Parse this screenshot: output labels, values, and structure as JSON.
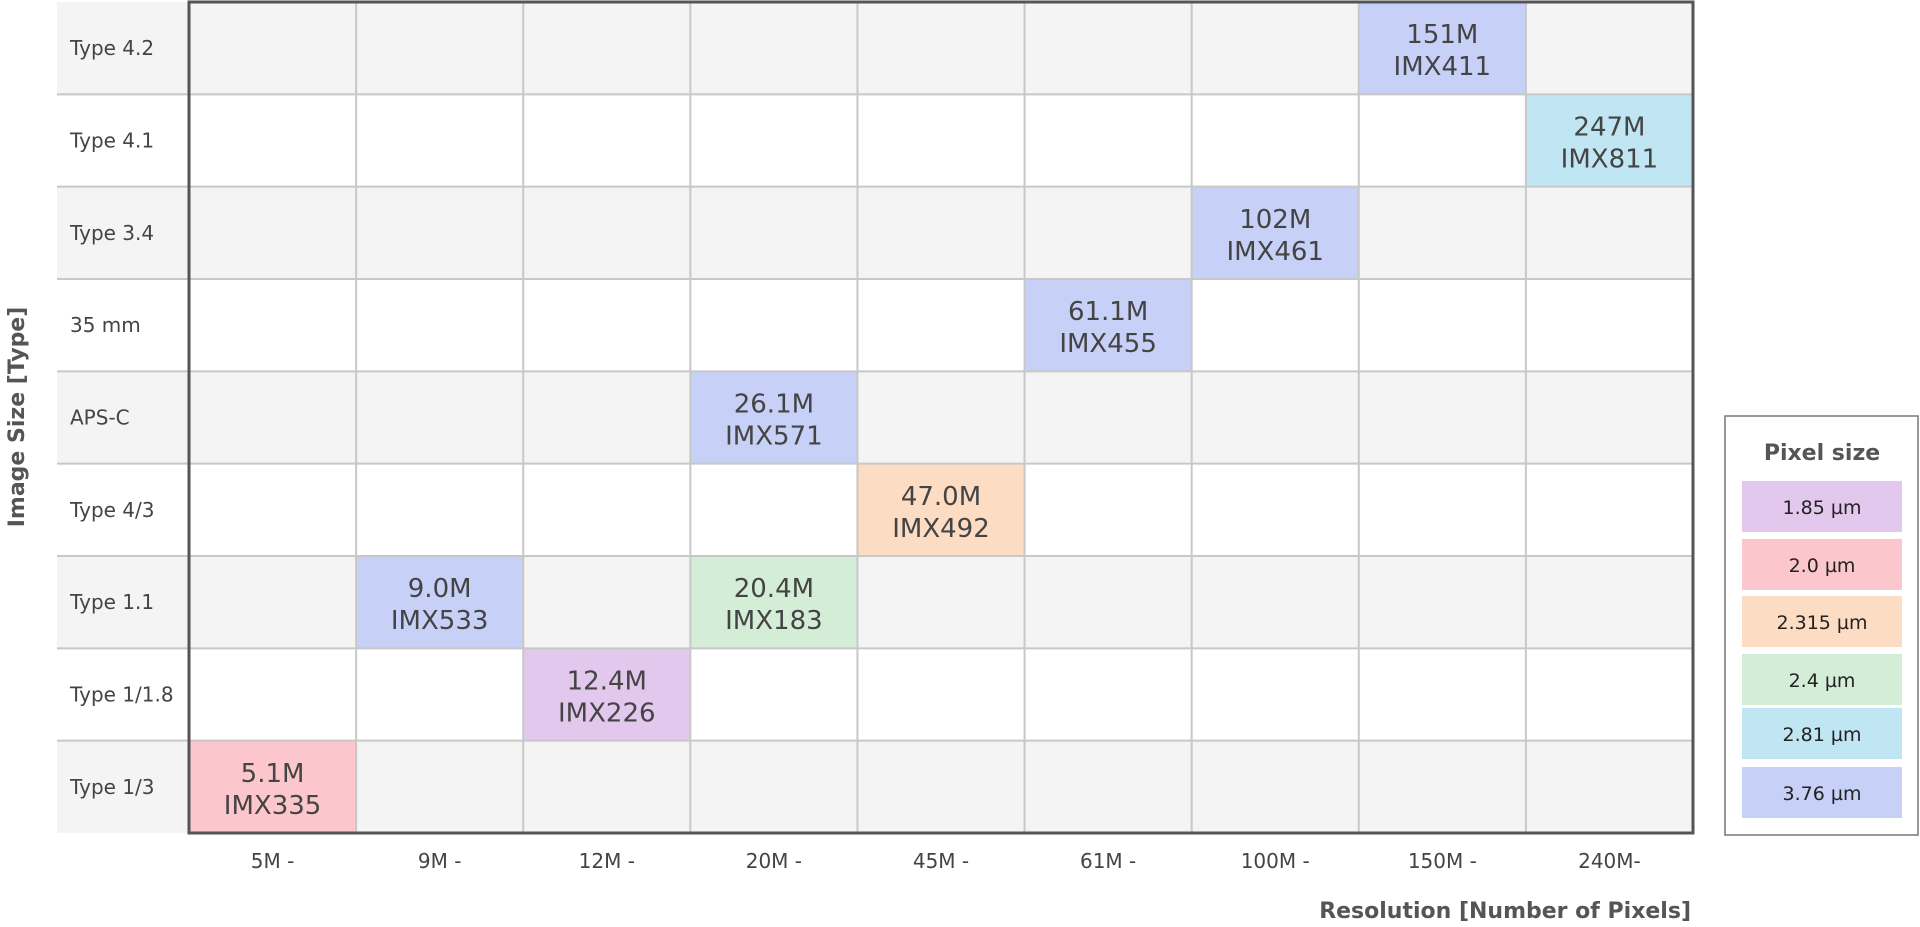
{
  "chart_data": {
    "type": "table",
    "xlabel": "Resolution [Number of Pixels]",
    "ylabel": "Image Size [Type]",
    "x_categories": [
      "5M -",
      "9M -",
      "12M -",
      "20M -",
      "45M -",
      "61M -",
      "100M -",
      "150M -",
      "240M-"
    ],
    "y_categories": [
      "Type 4.2",
      "Type 4.1",
      "Type 3.4",
      "35 mm",
      "APS-C",
      "Type 4/3",
      "Type 1.1",
      "Type 1/1.8",
      "Type 1/3"
    ],
    "legend_title": "Pixel size",
    "legend_position": "right",
    "legend": [
      {
        "label": "1.85 µm",
        "color": "#e2c8ec"
      },
      {
        "label": "2.0 µm",
        "color": "#fbc6cc"
      },
      {
        "label": "2.315 µm",
        "color": "#fddcc4"
      },
      {
        "label": "2.4 µm",
        "color": "#d3edd6"
      },
      {
        "label": "2.81 µm",
        "color": "#c0e6f3"
      },
      {
        "label": "3.76 µm",
        "color": "#c7d0f7"
      }
    ],
    "points": [
      {
        "x": "150M -",
        "y": "Type 4.2",
        "resolution": "151M",
        "model": "IMX411",
        "pixel_size": "3.76 µm"
      },
      {
        "x": "240M-",
        "y": "Type 4.1",
        "resolution": "247M",
        "model": "IMX811",
        "pixel_size": "2.81 µm"
      },
      {
        "x": "100M -",
        "y": "Type 3.4",
        "resolution": "102M",
        "model": "IMX461",
        "pixel_size": "3.76 µm"
      },
      {
        "x": "61M -",
        "y": "35 mm",
        "resolution": "61.1M",
        "model": "IMX455",
        "pixel_size": "3.76 µm"
      },
      {
        "x": "20M -",
        "y": "APS-C",
        "resolution": "26.1M",
        "model": "IMX571",
        "pixel_size": "3.76 µm"
      },
      {
        "x": "45M -",
        "y": "Type 4/3",
        "resolution": "47.0M",
        "model": "IMX492",
        "pixel_size": "2.315 µm"
      },
      {
        "x": "9M -",
        "y": "Type 1.1",
        "resolution": "9.0M",
        "model": "IMX533",
        "pixel_size": "3.76 µm"
      },
      {
        "x": "20M -",
        "y": "Type 1.1",
        "resolution": "20.4M",
        "model": "IMX183",
        "pixel_size": "2.4 µm"
      },
      {
        "x": "12M -",
        "y": "Type 1/1.8",
        "resolution": "12.4M",
        "model": "IMX226",
        "pixel_size": "1.85 µm"
      },
      {
        "x": "5M -",
        "y": "Type 1/3",
        "resolution": "5.1M",
        "model": "IMX335",
        "pixel_size": "2.0 µm"
      }
    ],
    "grid": true
  }
}
